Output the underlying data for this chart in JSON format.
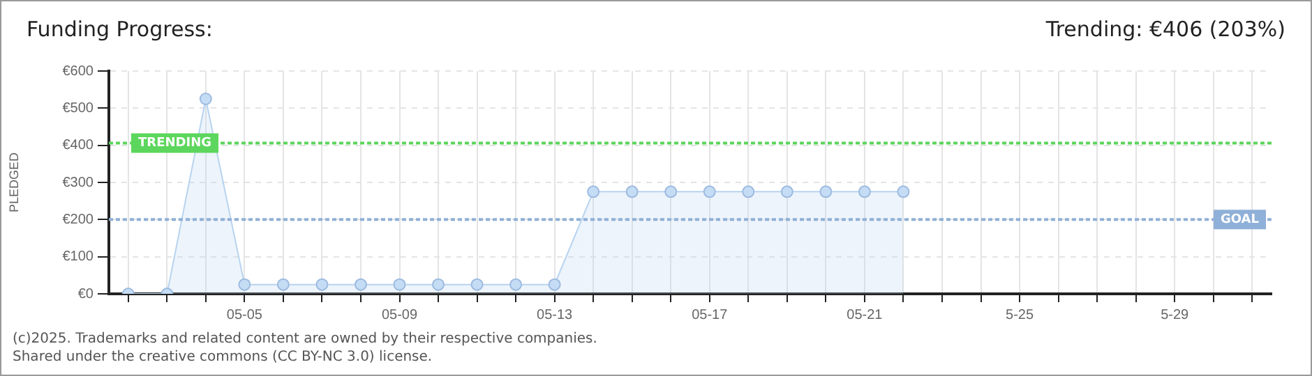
{
  "chart_data": {
    "type": "area",
    "title": "Funding Progress:",
    "subtitle": "Trending: €406 (203%)",
    "ylabel": "PLEDGED",
    "categories": [
      null,
      null,
      null,
      "05-05",
      null,
      null,
      null,
      "05-09",
      null,
      null,
      null,
      "05-13",
      null,
      null,
      null,
      "05-17",
      null,
      null,
      null,
      "05-21",
      null,
      null,
      null,
      "5-25",
      null,
      null,
      null,
      "5-29",
      null,
      null
    ],
    "series": [
      {
        "color": "#b8d4f0",
        "values": [
          0,
          0,
          525,
          25,
          25,
          25,
          25,
          25,
          25,
          25,
          25,
          25,
          275,
          275,
          275,
          275,
          275,
          275,
          275,
          275,
          275,
          null,
          null,
          null,
          null,
          null,
          null,
          null,
          null,
          null
        ]
      }
    ],
    "ylim": [
      0,
      600
    ],
    "yticks": [
      {
        "value": 0,
        "label": "€0"
      },
      {
        "value": 100,
        "label": "€100"
      },
      {
        "value": 200,
        "label": "€200"
      },
      {
        "value": 300,
        "label": "€300"
      },
      {
        "value": 400,
        "label": "€400"
      },
      {
        "value": 500,
        "label": "€500"
      },
      {
        "value": 600,
        "label": "€600"
      }
    ],
    "ref_lines": [
      {
        "axis": "y",
        "value": 406,
        "label": "TRENDING",
        "color": "#5cd65c",
        "line_style": "dotted"
      },
      {
        "axis": "y",
        "value": 200,
        "label": "GOAL",
        "color": "#8fb0d8",
        "line_style": "dotted"
      }
    ],
    "grid": true,
    "marker": "circle",
    "legend": false,
    "annotations": [
      "(c)2025. Trademarks and related content are owned by their respective companies.",
      "Shared under the creative commons (CC BY-NC 3.0) license."
    ]
  }
}
